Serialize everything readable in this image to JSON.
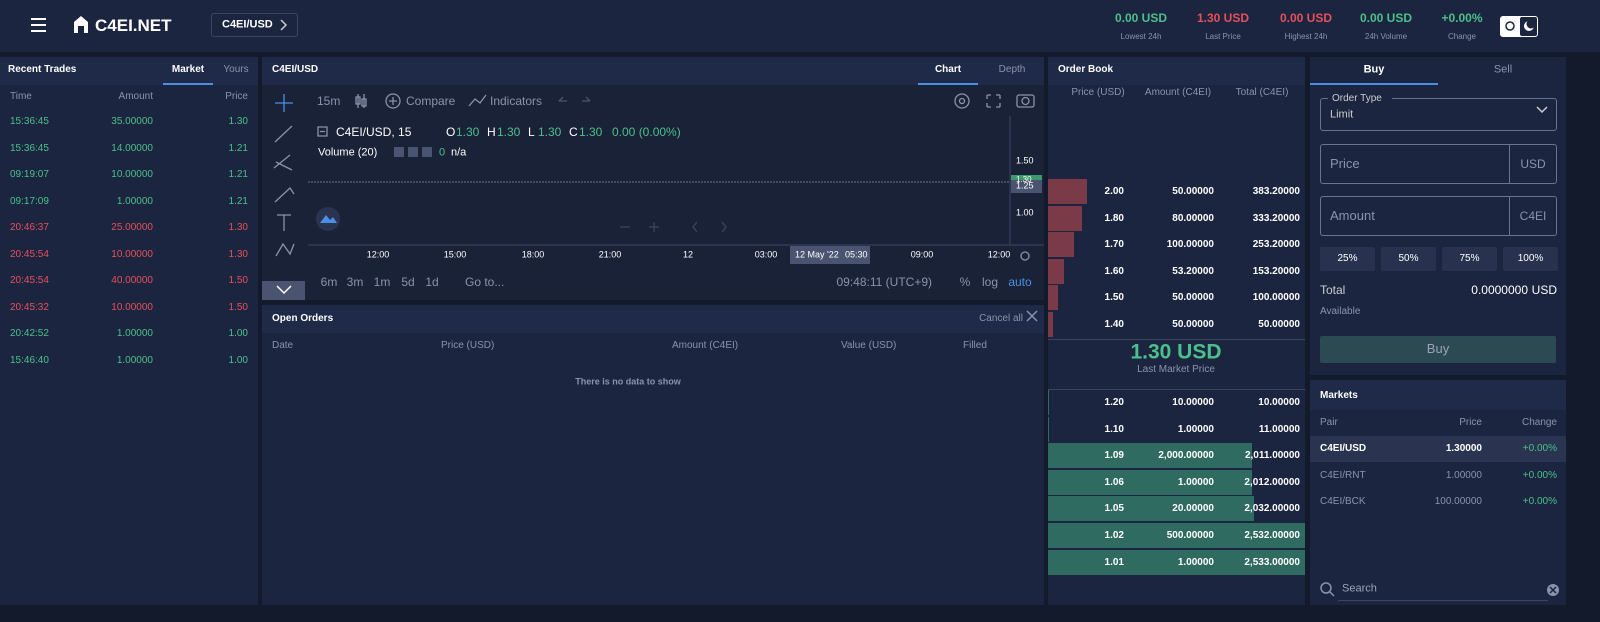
{
  "header": {
    "logo": "C4EI.NET",
    "pair": "C4EI/USD",
    "stats": [
      {
        "value": "0.00 USD",
        "label": "Lowest 24h",
        "color": "#4bc08a"
      },
      {
        "value": "1.30 USD",
        "label": "Last Price",
        "color": "#e5505a"
      },
      {
        "value": "0.00 USD",
        "label": "Highest 24h",
        "color": "#e5505a"
      },
      {
        "value": "0.00 USD",
        "label": "24h Volume",
        "color": "#4bc08a"
      },
      {
        "value": "+0.00%",
        "label": "Change",
        "color": "#4bc08a"
      }
    ]
  },
  "recent_trades": {
    "title": "Recent Trades",
    "tabs": [
      "Market",
      "Yours"
    ],
    "columns": [
      "Time",
      "Amount",
      "Price"
    ],
    "rows": [
      [
        "15:36:45",
        "35.00000",
        "1.30"
      ],
      [
        "15:36:45",
        "14.00000",
        "1.21"
      ],
      [
        "09:19:07",
        "10.00000",
        "1.21"
      ],
      [
        "09:17:09",
        "1.00000",
        "1.21"
      ],
      [
        "20:46:37",
        "25.00000",
        "1.30"
      ],
      [
        "20:45:54",
        "10.00000",
        "1.30"
      ],
      [
        "20:45:54",
        "40.00000",
        "1.50"
      ],
      [
        "20:45:32",
        "10.00000",
        "1.50"
      ],
      [
        "20:42:52",
        "1.00000",
        "1.00"
      ],
      [
        "15:46:40",
        "1.00000",
        "1.00"
      ]
    ],
    "colors": [
      "#4bc08a",
      "#4bc08a",
      "#4bc08a",
      "#4bc08a",
      "#e5505a",
      "#e5505a",
      "#e5505a",
      "#e5505a",
      "#4bc08a",
      "#4bc08a"
    ]
  },
  "chart": {
    "title": "C4EI/USD",
    "tabs": [
      "Chart",
      "Depth"
    ],
    "toolbar": [
      "15m",
      "Compare",
      "Indicators"
    ],
    "legend": {
      "symbol": "C4EI/USD, 15",
      "ohlc": [
        [
          "O",
          "1.30"
        ],
        [
          "H",
          "1.30"
        ],
        [
          "L",
          "1.30"
        ],
        [
          "C",
          "1.30"
        ]
      ],
      "change": "0.00 (0.00%)",
      "volume": "Volume (20)",
      "volume_value": "0",
      "volume_na": "n/a"
    },
    "price_axis": [
      "1.50",
      "1.25",
      "1.00"
    ],
    "last_price": "1.30",
    "time_axis": [
      "12:00",
      "15:00",
      "18:00",
      "21:00",
      "12",
      "03:00",
      "09:00",
      "12:00"
    ],
    "crosshair_date": "12 May '22",
    "crosshair_time": "05:30",
    "ranges": [
      "6m",
      "3m",
      "1m",
      "5d",
      "1d"
    ],
    "goto": "Go to...",
    "clock": "09:48:11 (UTC+9)",
    "scale_options": [
      "%",
      "log",
      "auto"
    ]
  },
  "open_orders": {
    "title": "Open Orders",
    "cancel_all": "Cancel all",
    "columns": [
      "Date",
      "Price (USD)",
      "Amount (C4EI)",
      "Value (USD)",
      "Filled"
    ],
    "empty": "There is no data to show"
  },
  "order_book": {
    "title": "Order Book",
    "columns": [
      "Price (USD)",
      "Amount (C4EI)",
      "Total (C4EI)"
    ],
    "asks": [
      [
        "2.00",
        "50.00000",
        "383.20000"
      ],
      [
        "1.80",
        "80.00000",
        "333.20000"
      ],
      [
        "1.70",
        "100.00000",
        "253.20000"
      ],
      [
        "1.60",
        "53.20000",
        "153.20000"
      ],
      [
        "1.50",
        "50.00000",
        "100.00000"
      ],
      [
        "1.40",
        "50.00000",
        "50.00000"
      ]
    ],
    "last_price": "1.30 USD",
    "last_label": "Last Market Price",
    "bids": [
      [
        "1.20",
        "10.00000",
        "10.00000"
      ],
      [
        "1.10",
        "1.00000",
        "11.00000"
      ],
      [
        "1.09",
        "2,000.00000",
        "2,011.00000"
      ],
      [
        "1.06",
        "1.00000",
        "2,012.00000"
      ],
      [
        "1.05",
        "20.00000",
        "2,032.00000"
      ],
      [
        "1.02",
        "500.00000",
        "2,532.00000"
      ],
      [
        "1.01",
        "1.00000",
        "2,533.00000"
      ]
    ],
    "ask_color": "#7a3a48",
    "bid_color": "#2f6b60"
  },
  "trade_form": {
    "tabs": [
      "Buy",
      "Sell"
    ],
    "order_type_label": "Order Type",
    "order_type": "Limit",
    "price_placeholder": "Price",
    "price_unit": "USD",
    "amount_placeholder": "Amount",
    "amount_unit": "C4EI",
    "percents": [
      "25%",
      "50%",
      "75%",
      "100%"
    ],
    "total_label": "Total",
    "total_value": "0.0000000",
    "total_unit": "USD",
    "available_label": "Available",
    "submit": "Buy"
  },
  "markets": {
    "title": "Markets",
    "columns": [
      "Pair",
      "Price",
      "Change"
    ],
    "rows": [
      [
        "C4EI/USD",
        "1.30000",
        "+0.00%"
      ],
      [
        "C4EI/RNT",
        "1.00000",
        "+0.00%"
      ],
      [
        "C4EI/BCK",
        "100.00000",
        "+0.00%"
      ]
    ],
    "search_placeholder": "Search"
  }
}
